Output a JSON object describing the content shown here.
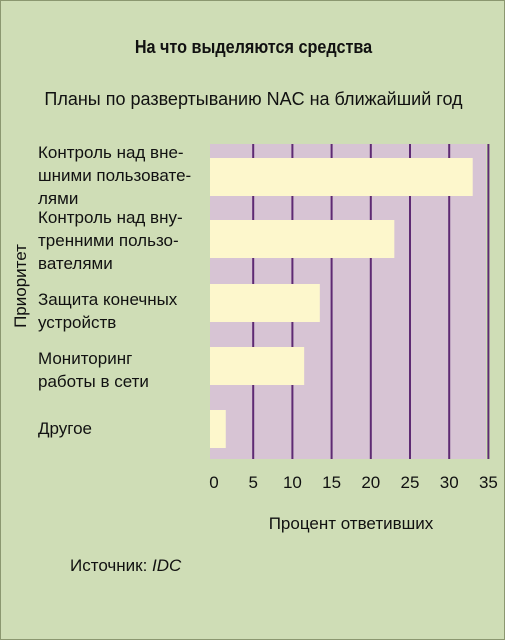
{
  "title": "На что выделяются средства",
  "subtitle": "Планы по развертыванию NAC на ближайший год",
  "source": {
    "label": "Источник: ",
    "name": "IDC"
  },
  "colors": {
    "background": "#cfddb6",
    "plot_area": "#d7c4d4",
    "gridline": "#5e2a73",
    "bar": "#fdf7cc"
  },
  "chart_data": {
    "type": "bar",
    "orientation": "horizontal",
    "title": "На что выделяются средства",
    "subtitle": "Планы по развертыванию NAC на ближайший год",
    "xlabel": "Процент ответивших",
    "ylabel": "Приоритет",
    "categories": [
      "Контроль над вне-\nшними пользовате-\nлями",
      "Контроль над вну-\nтренними пользо-\nвателями",
      "Защита конечных\nустройств",
      "Мониторинг\nработы в сети",
      "Другое"
    ],
    "values": [
      33,
      23,
      13.5,
      11.5,
      1.5
    ],
    "xlim": [
      0,
      35
    ],
    "xticks": [
      "0",
      "5",
      "10",
      "15",
      "20",
      "25",
      "30",
      "35"
    ],
    "grid": true,
    "legend": "none"
  }
}
